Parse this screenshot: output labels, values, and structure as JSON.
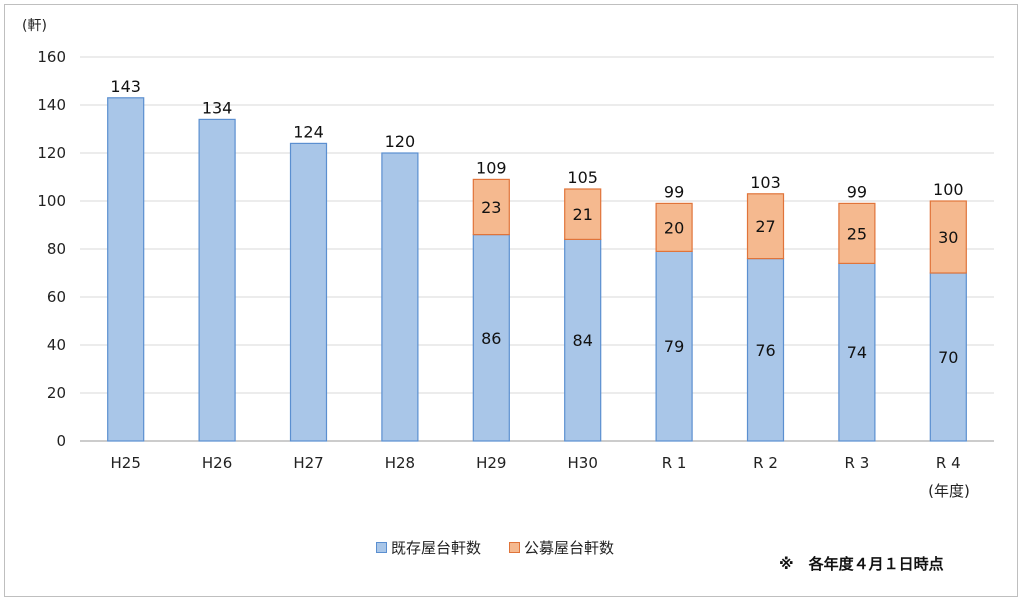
{
  "chart_data": {
    "type": "bar",
    "stacked": true,
    "unit_label": "(軒)",
    "categories": [
      "H25",
      "H26",
      "H27",
      "H28",
      "H29",
      "H30",
      "R 1",
      "R 2",
      "R 3",
      "R 4"
    ],
    "x_axis_suffix": "(年度)",
    "series": [
      {
        "name": "既存屋台軒数",
        "values": [
          143,
          134,
          124,
          120,
          86,
          84,
          79,
          76,
          74,
          70
        ],
        "color": "#a9c6e8",
        "stroke": "#5b8fd0"
      },
      {
        "name": "公募屋台軒数",
        "values": [
          0,
          0,
          0,
          0,
          23,
          21,
          20,
          27,
          25,
          30
        ],
        "color": "#f5b98f",
        "stroke": "#e0743a"
      }
    ],
    "totals": [
      143,
      134,
      124,
      120,
      109,
      105,
      99,
      103,
      99,
      100
    ],
    "ylim": [
      0,
      160
    ],
    "yticks": [
      0,
      20,
      40,
      60,
      80,
      100,
      120,
      140,
      160
    ],
    "grid": true,
    "legend_position": "bottom"
  },
  "note": "※　各年度４月１日時点"
}
